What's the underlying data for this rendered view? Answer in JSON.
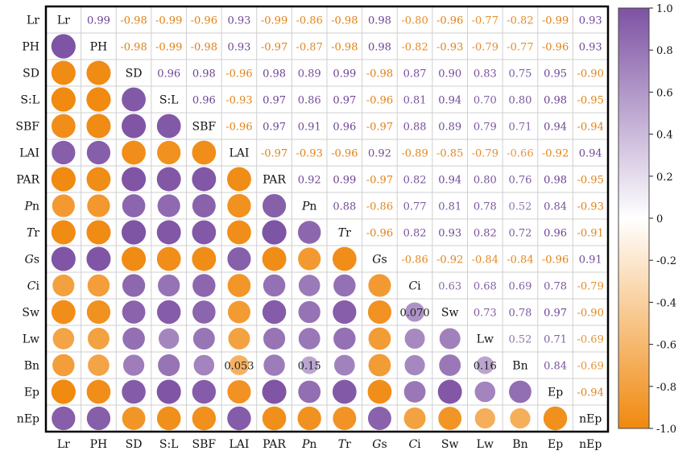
{
  "chart_data": {
    "type": "heatmap",
    "subtype": "correlation-matrix",
    "title": "",
    "variables": [
      "Lr",
      "PH",
      "SD",
      "S:L",
      "SBF",
      "LAI",
      "PAR",
      "Pn",
      "Tr",
      "Gs",
      "Ci",
      "Sw",
      "Lw",
      "Bn",
      "Ep",
      "nEp"
    ],
    "italic_labels": [
      "Pn",
      "Tr",
      "Gs",
      "Ci"
    ],
    "upper_display": "numbers",
    "lower_display": "circles",
    "matrix": [
      [
        1,
        0.99,
        -0.98,
        -0.99,
        -0.96,
        0.93,
        -0.99,
        -0.86,
        -0.98,
        0.98,
        -0.8,
        -0.96,
        -0.77,
        -0.82,
        -0.99,
        0.93
      ],
      [
        0.99,
        1,
        -0.98,
        -0.99,
        -0.98,
        0.93,
        -0.97,
        -0.87,
        -0.98,
        0.98,
        -0.82,
        -0.93,
        -0.79,
        -0.77,
        -0.96,
        0.93
      ],
      [
        -0.98,
        -0.98,
        1,
        0.96,
        0.98,
        -0.96,
        0.98,
        0.89,
        0.99,
        -0.98,
        0.87,
        0.9,
        0.83,
        0.75,
        0.95,
        -0.9
      ],
      [
        -0.99,
        -0.99,
        0.96,
        1,
        0.96,
        -0.93,
        0.97,
        0.86,
        0.97,
        -0.96,
        0.81,
        0.94,
        0.7,
        0.8,
        0.98,
        -0.95
      ],
      [
        -0.96,
        -0.98,
        0.98,
        0.96,
        1,
        -0.96,
        0.97,
        0.91,
        0.96,
        -0.97,
        0.88,
        0.89,
        0.79,
        0.71,
        0.94,
        -0.94
      ],
      [
        0.93,
        0.93,
        -0.96,
        -0.93,
        -0.96,
        1,
        -0.97,
        -0.93,
        -0.96,
        0.92,
        -0.89,
        -0.85,
        -0.79,
        -0.66,
        -0.92,
        0.94
      ],
      [
        -0.99,
        -0.97,
        0.98,
        0.97,
        0.97,
        -0.97,
        1,
        0.92,
        0.99,
        -0.97,
        0.82,
        0.94,
        0.8,
        0.76,
        0.98,
        -0.95
      ],
      [
        -0.86,
        -0.87,
        0.89,
        0.86,
        0.91,
        -0.93,
        0.92,
        1,
        0.88,
        -0.86,
        0.77,
        0.81,
        0.78,
        0.52,
        0.84,
        -0.93
      ],
      [
        -0.98,
        -0.98,
        0.99,
        0.97,
        0.96,
        -0.96,
        0.99,
        0.88,
        1,
        -0.96,
        0.82,
        0.93,
        0.82,
        0.72,
        0.96,
        -0.91
      ],
      [
        0.98,
        0.98,
        -0.98,
        -0.96,
        -0.97,
        0.92,
        -0.97,
        -0.86,
        -0.96,
        1,
        -0.86,
        -0.92,
        -0.84,
        -0.84,
        -0.96,
        0.91
      ],
      [
        -0.8,
        -0.82,
        0.87,
        0.81,
        0.88,
        -0.89,
        0.82,
        0.77,
        0.82,
        -0.86,
        1,
        0.63,
        0.68,
        0.69,
        0.78,
        -0.79
      ],
      [
        -0.96,
        -0.93,
        0.9,
        0.94,
        0.89,
        -0.85,
        0.94,
        0.81,
        0.93,
        -0.92,
        0.63,
        1,
        0.73,
        0.78,
        0.97,
        -0.9
      ],
      [
        -0.77,
        -0.79,
        0.83,
        0.7,
        0.79,
        -0.79,
        0.8,
        0.78,
        0.82,
        -0.84,
        0.68,
        0.73,
        1,
        0.52,
        0.71,
        -0.69
      ],
      [
        -0.82,
        -0.77,
        0.75,
        0.8,
        0.71,
        -0.66,
        0.76,
        0.52,
        0.72,
        -0.84,
        0.69,
        0.78,
        0.52,
        1,
        0.84,
        -0.69
      ],
      [
        -0.99,
        -0.96,
        0.95,
        0.98,
        0.94,
        -0.92,
        0.98,
        0.84,
        0.96,
        -0.96,
        0.78,
        0.97,
        0.71,
        0.84,
        1,
        -0.94
      ],
      [
        0.93,
        0.93,
        -0.9,
        -0.95,
        -0.94,
        0.94,
        -0.95,
        -0.93,
        -0.91,
        0.91,
        -0.79,
        -0.9,
        -0.69,
        -0.69,
        -0.94,
        1
      ]
    ],
    "lower_labels": [
      {
        "row": 11,
        "col": 10,
        "text": "0.070"
      },
      {
        "row": 13,
        "col": 5,
        "text": "0.053"
      },
      {
        "row": 13,
        "col": 7,
        "text": "0.15"
      },
      {
        "row": 13,
        "col": 12,
        "text": "0.16"
      }
    ],
    "colorbar": {
      "range": [
        -1.0,
        1.0
      ],
      "ticks": [
        "1.0",
        "0.8",
        "0.6",
        "0.4",
        "0.2",
        "0",
        "-0.2",
        "-0.4",
        "-0.6",
        "-0.8",
        "-1.0"
      ],
      "positive_color": "#7d52a3",
      "negative_color": "#f0890f",
      "neutral_color": "#ffffff"
    },
    "grid": true
  }
}
